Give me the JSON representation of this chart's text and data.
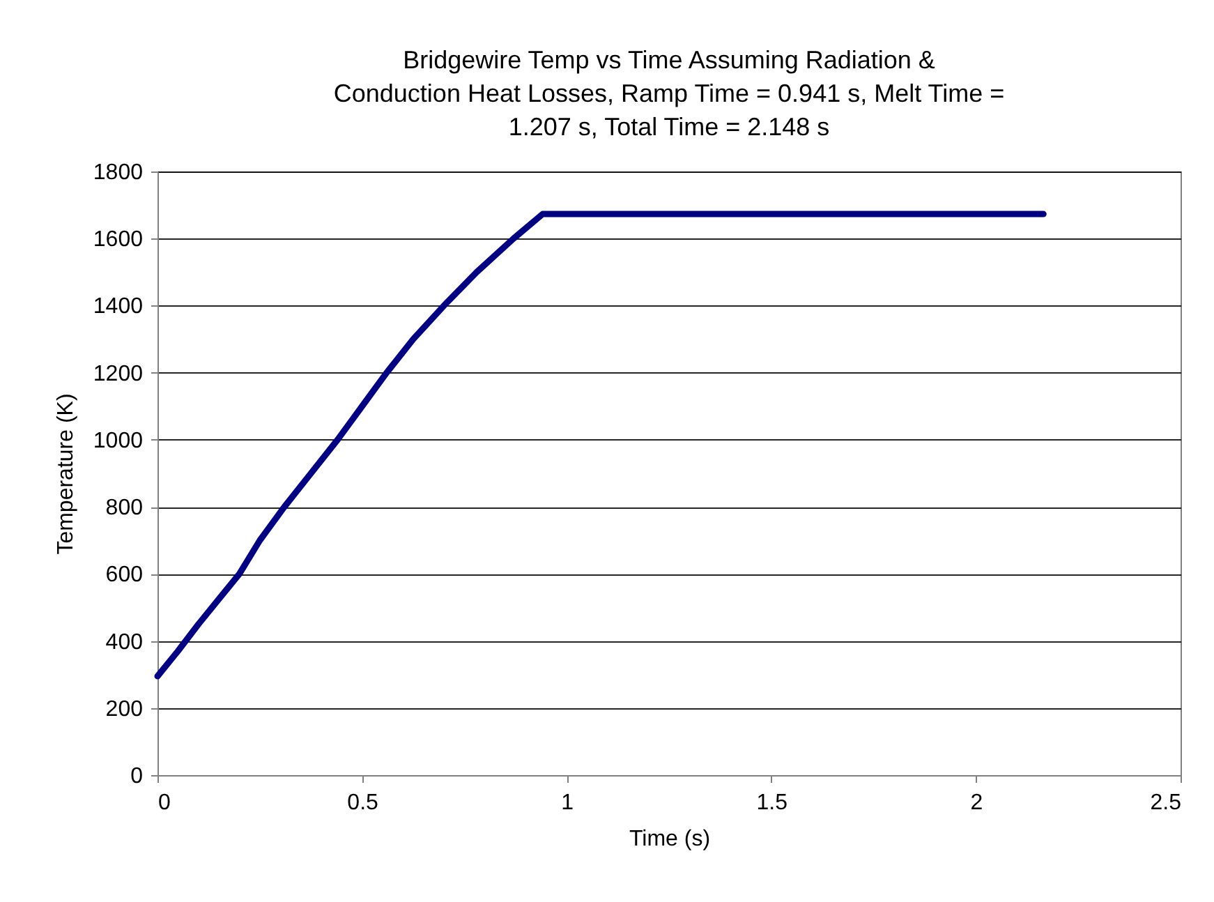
{
  "chart_data": {
    "type": "line",
    "title": [
      "Bridgewire Temp vs Time Assuming Radiation &",
      "Conduction Heat Losses, Ramp Time = 0.941 s, Melt Time =",
      "1.207 s, Total Time = 2.148 s"
    ],
    "xlabel": "Time (s)",
    "ylabel": "Temperature (K)",
    "series": [
      {
        "color": "#000080",
        "x": [
          0,
          0.05,
          0.1,
          0.15,
          0.2,
          0.25,
          0.31,
          0.375,
          0.44,
          0.5,
          0.56,
          0.625,
          0.7,
          0.78,
          0.87,
          0.941,
          1.5,
          2.165
        ],
        "values": [
          295,
          370,
          450,
          525,
          600,
          700,
          800,
          900,
          1000,
          1100,
          1200,
          1300,
          1400,
          1500,
          1600,
          1673,
          1673,
          1673
        ]
      }
    ],
    "xlim": [
      0,
      2.5
    ],
    "xticks": [
      0,
      0.5,
      1,
      1.5,
      2,
      2.5
    ],
    "ylim": [
      0,
      1800
    ],
    "yticks": [
      0,
      200,
      400,
      600,
      800,
      1000,
      1200,
      1400,
      1600,
      1800
    ],
    "grid": "y",
    "marker": "none",
    "line_style": "solid"
  }
}
